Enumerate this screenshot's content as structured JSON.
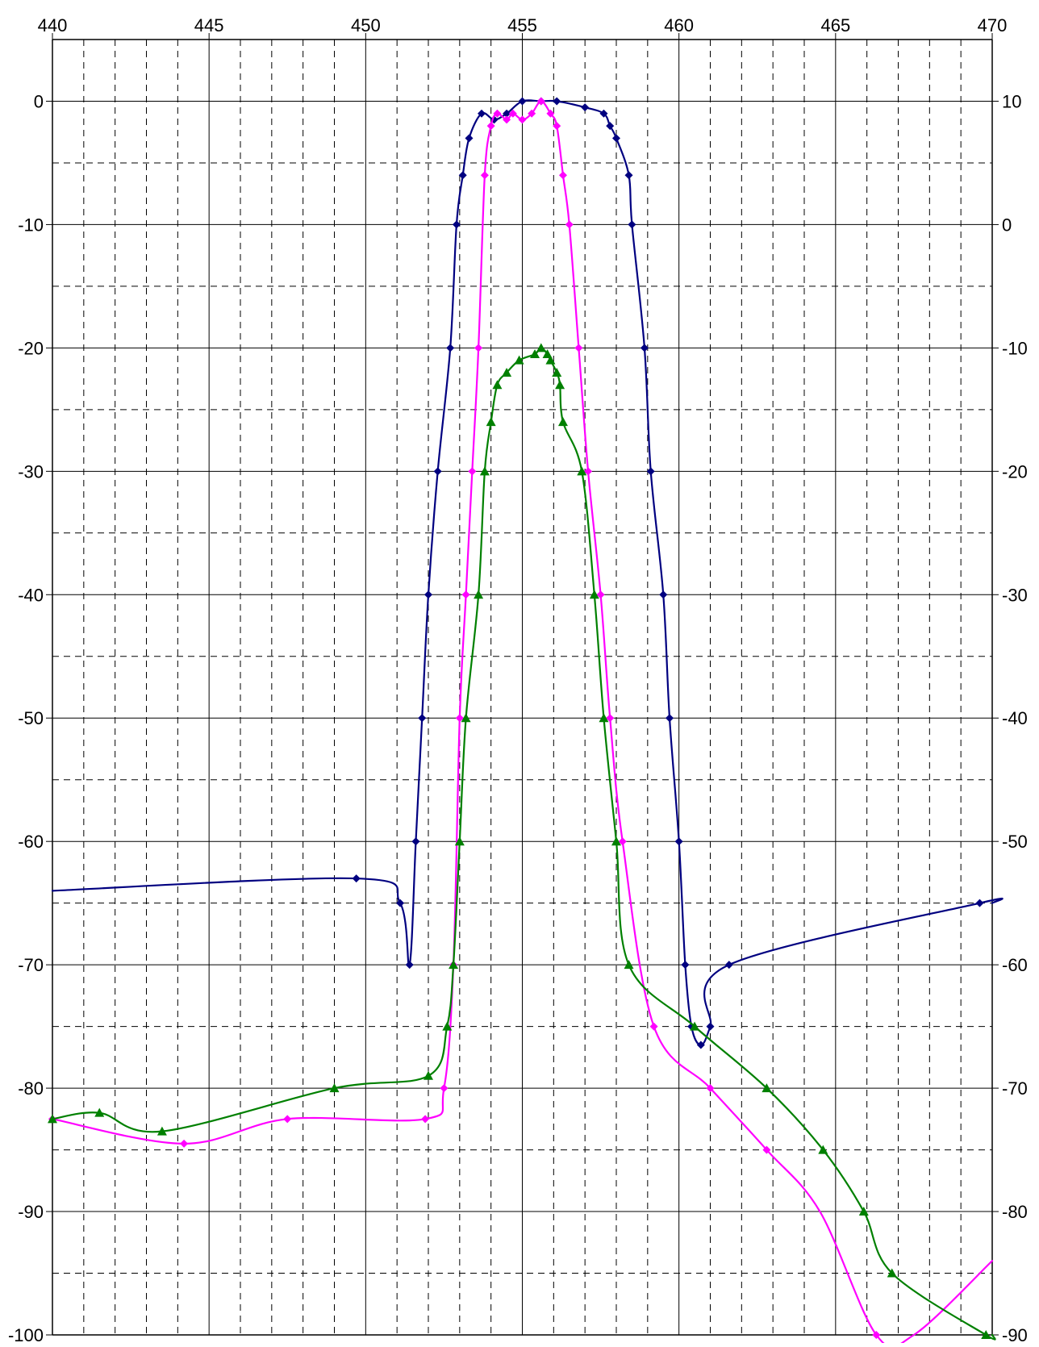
{
  "chart_data": {
    "type": "line",
    "title": "",
    "xlabel": "",
    "ylabel": "",
    "y2label": "",
    "xlim": [
      440,
      470
    ],
    "ylim": [
      -100,
      5
    ],
    "y2lim": [
      -90,
      15
    ],
    "x_ticks": [
      440,
      445,
      450,
      455,
      460,
      465,
      470
    ],
    "x_tick_labels": [
      "440",
      "445",
      "450",
      "455",
      "460",
      "465",
      "470"
    ],
    "y_ticks": [
      0,
      -10,
      -20,
      -30,
      -40,
      -50,
      -60,
      -70,
      -80,
      -90,
      -100
    ],
    "y_tick_labels": [
      "0",
      "-10",
      "-20",
      "-30",
      "-40",
      "-50",
      "-60",
      "-70",
      "-80",
      "-90",
      "-100"
    ],
    "y2_ticks": [
      10,
      0,
      -10,
      -20,
      -30,
      -40,
      -50,
      -60,
      -70,
      -80,
      -90
    ],
    "y2_tick_labels": [
      "10",
      "0",
      "-10",
      "-20",
      "-30",
      "-40",
      "-50",
      "-60",
      "-70",
      "-80",
      "-90"
    ],
    "grid": "major solid, minor dashed",
    "legend": "none",
    "series": [
      {
        "axis": "left",
        "color": "#000080",
        "marker": "diamond",
        "x": [
          440,
          449.7,
          451.1,
          451.4,
          451.6,
          451.8,
          452.0,
          452.3,
          452.7,
          452.9,
          453.1,
          453.3,
          453.7,
          454.1,
          454.5,
          455.0,
          455.6,
          456.1,
          457.0,
          457.6,
          457.8,
          458.0,
          458.4,
          458.5,
          458.9,
          459.1,
          459.5,
          459.7,
          460.0,
          460.2,
          460.4,
          460.7,
          461.0,
          461.6,
          469.6,
          470
        ],
        "y": [
          -64,
          -63,
          -65,
          -70,
          -60,
          -50,
          -40,
          -30,
          -20,
          -10,
          -6,
          -3,
          -1,
          -1.5,
          -1,
          0,
          0,
          0,
          -0.5,
          -1,
          -2,
          -3,
          -6,
          -10,
          -20,
          -30,
          -40,
          -50,
          -60,
          -70,
          -75,
          -76.5,
          -75,
          -70,
          -65,
          -65
        ],
        "markers_x": [
          449.7,
          451.1,
          451.4,
          451.6,
          451.8,
          452.0,
          452.3,
          452.7,
          452.9,
          453.1,
          453.3,
          453.7,
          454.1,
          454.5,
          455.0,
          455.6,
          456.1,
          457.0,
          457.6,
          457.8,
          458.0,
          458.4,
          458.5,
          458.9,
          459.1,
          459.5,
          459.7,
          460.0,
          460.2,
          460.4,
          460.7,
          461.0,
          461.6,
          469.6
        ],
        "markers_y": [
          -63,
          -65,
          -70,
          -60,
          -50,
          -40,
          -30,
          -20,
          -10,
          -6,
          -3,
          -1,
          -1.5,
          -1,
          0,
          0,
          0,
          -0.5,
          -1,
          -2,
          -3,
          -6,
          -10,
          -20,
          -30,
          -40,
          -50,
          -60,
          -70,
          -75,
          -76.5,
          -75,
          -70,
          -65
        ]
      },
      {
        "axis": "left",
        "color": "#ff00ff",
        "marker": "diamond",
        "x": [
          440,
          444.2,
          447.5,
          451.9,
          452.5,
          452.8,
          453.0,
          453.2,
          453.4,
          453.6,
          453.8,
          454.0,
          454.2,
          454.5,
          454.7,
          455.0,
          455.3,
          455.6,
          455.9,
          456.1,
          456.3,
          456.5,
          456.8,
          457.1,
          457.5,
          457.8,
          458.2,
          459.2,
          461.0,
          462.8,
          464.5,
          466.3,
          467.5,
          470
        ],
        "y": [
          -82.5,
          -84.5,
          -82.5,
          -82.5,
          -80,
          -70,
          -50,
          -40,
          -30,
          -20,
          -6,
          -2,
          -1,
          -1.5,
          -1,
          -1.5,
          -1,
          0,
          -1,
          -2,
          -6,
          -10,
          -20,
          -30,
          -40,
          -50,
          -60,
          -75,
          -80,
          -85,
          -90,
          -100,
          -100,
          -94
        ],
        "markers_x": [
          440,
          444.2,
          447.5,
          451.9,
          452.5,
          452.8,
          453.0,
          453.2,
          453.4,
          453.6,
          453.8,
          454.0,
          454.2,
          454.5,
          454.7,
          455.0,
          455.3,
          455.6,
          455.9,
          456.1,
          456.3,
          456.5,
          456.8,
          457.1,
          457.5,
          457.8,
          458.2,
          459.2,
          461.0,
          462.8,
          466.3
        ],
        "markers_y": [
          -82.5,
          -84.5,
          -82.5,
          -82.5,
          -80,
          -70,
          -50,
          -40,
          -30,
          -20,
          -6,
          -2,
          -1,
          -1.5,
          -1,
          -1.5,
          -1,
          0,
          -1,
          -2,
          -6,
          -10,
          -20,
          -30,
          -40,
          -50,
          -60,
          -75,
          -80,
          -85,
          -100
        ]
      },
      {
        "axis": "right",
        "color": "#008000",
        "marker": "triangle",
        "x": [
          440,
          441.5,
          443.5,
          449.0,
          452.0,
          452.6,
          452.8,
          453.0,
          453.2,
          453.6,
          453.8,
          454.0,
          454.2,
          454.5,
          454.9,
          455.4,
          455.6,
          455.8,
          455.9,
          456.1,
          456.2,
          456.3,
          456.9,
          457.3,
          457.6,
          458.0,
          458.4,
          460.5,
          462.8,
          464.6,
          465.9,
          466.8,
          469.8,
          470
        ],
        "y": [
          -72.5,
          -72,
          -73.5,
          -70,
          -69,
          -65,
          -60,
          -50,
          -40,
          -30,
          -20,
          -16,
          -13,
          -12,
          -11,
          -10.5,
          -10,
          -10.5,
          -11,
          -12,
          -13,
          -16,
          -20,
          -30,
          -40,
          -50,
          -60,
          -65,
          -70,
          -75,
          -80,
          -85,
          -90,
          -90
        ],
        "markers_x": [
          440,
          441.5,
          443.5,
          449.0,
          452.0,
          452.6,
          452.8,
          453.0,
          453.2,
          453.6,
          453.8,
          454.0,
          454.2,
          454.5,
          454.9,
          455.4,
          455.6,
          455.8,
          455.9,
          456.1,
          456.2,
          456.3,
          456.9,
          457.3,
          457.6,
          458.0,
          458.4,
          460.5,
          462.8,
          464.6,
          465.9,
          466.8,
          469.8
        ],
        "markers_y": [
          -72.5,
          -72,
          -73.5,
          -70,
          -69,
          -65,
          -60,
          -50,
          -40,
          -30,
          -20,
          -16,
          -13,
          -12,
          -11,
          -10.5,
          -10,
          -10.5,
          -11,
          -12,
          -13,
          -16,
          -20,
          -30,
          -40,
          -50,
          -60,
          -65,
          -70,
          -75,
          -80,
          -85,
          -90
        ]
      }
    ]
  }
}
